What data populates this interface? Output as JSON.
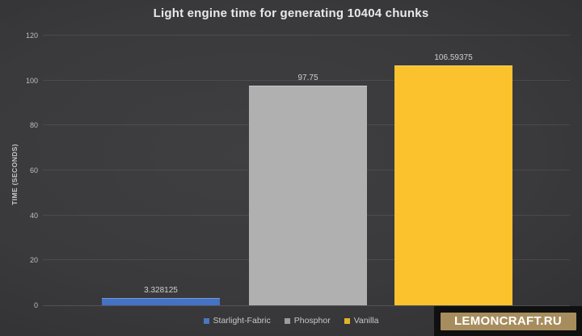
{
  "chart_data": {
    "type": "bar",
    "title": "Light engine time for generating 10404 chunks",
    "xlabel": "",
    "ylabel": "TIME (SECONDS)",
    "ylim": [
      0,
      120
    ],
    "yticks": [
      0,
      20,
      40,
      60,
      80,
      100,
      120
    ],
    "grid": true,
    "legend_position": "bottom",
    "categories": [
      "Starlight-Fabric",
      "Phosphor",
      "Vanilla"
    ],
    "values": [
      3.328125,
      97.75,
      106.59375
    ],
    "data_labels": [
      "3.328125",
      "97.75",
      "106.59375"
    ],
    "bar_colors": [
      "#4472c4",
      "#b0b0b0",
      "#fcc22d"
    ],
    "legend_swatch_colors": [
      "#4a77c0",
      "#9d9d9d",
      "#e3b426"
    ]
  },
  "watermark": {
    "text": "LEMONCRAFT.RU",
    "panel_color": "#101010",
    "badge_color": "#a78d5e",
    "text_color": "#ffffff"
  }
}
